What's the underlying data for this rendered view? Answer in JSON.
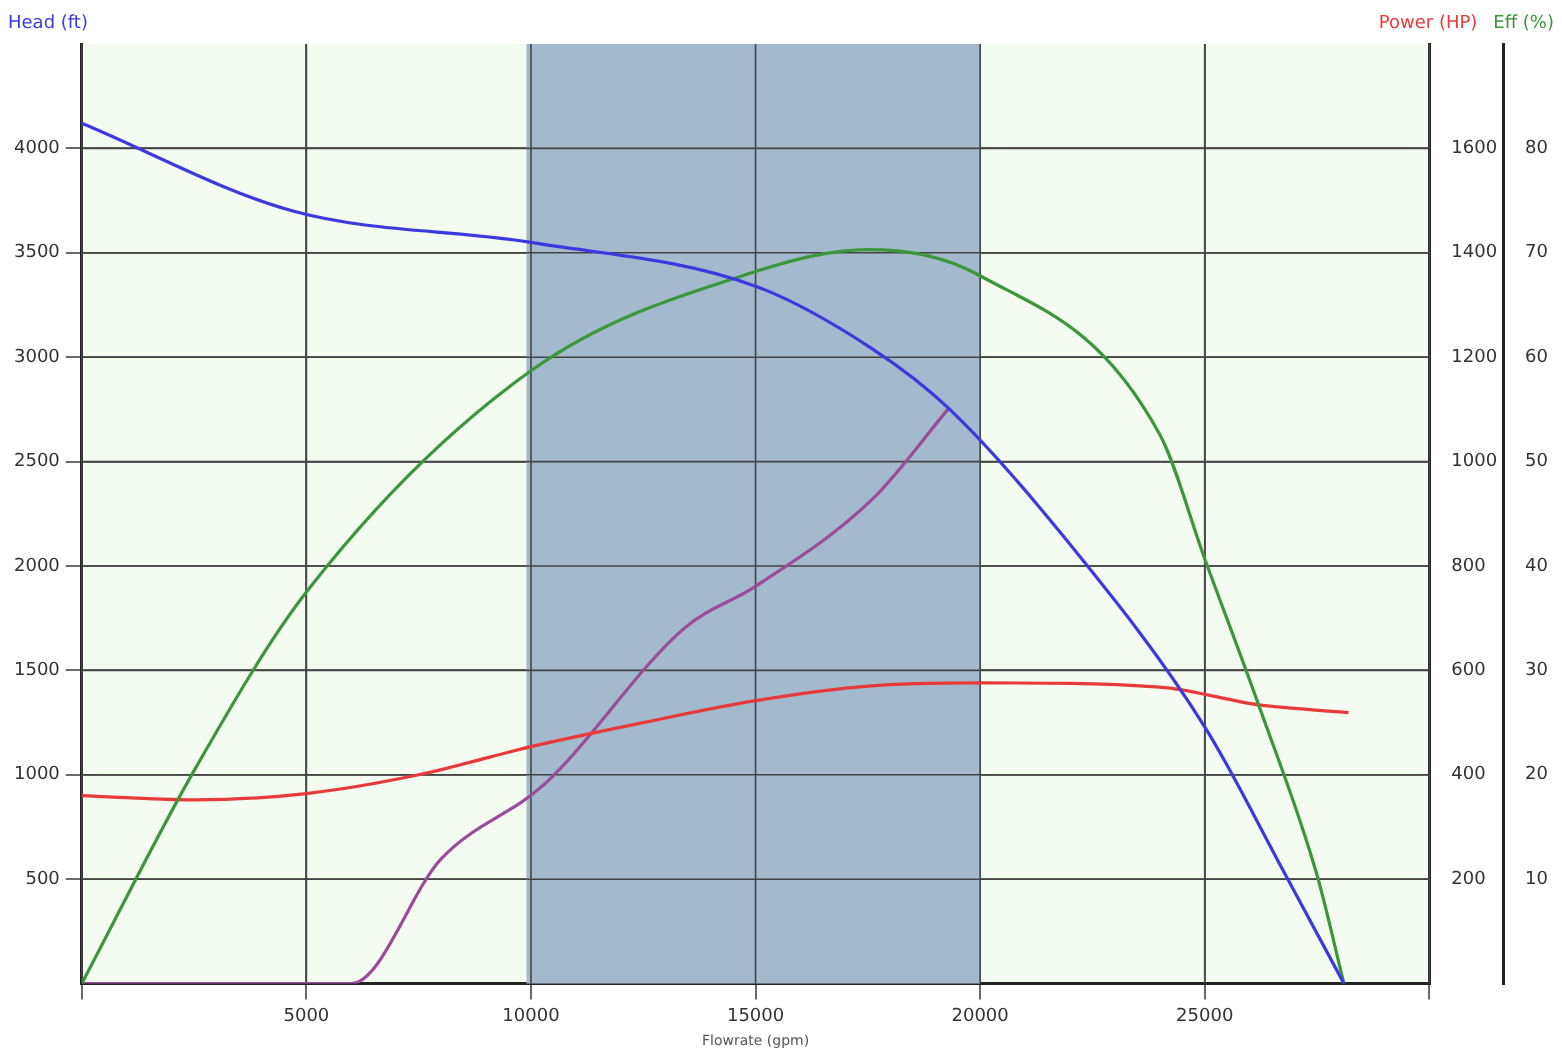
{
  "chart_data": {
    "type": "line",
    "xlabel": "Flowrate (gpm)",
    "ylabel": "Head (ft)",
    "y2label": "Power (HP)",
    "y3label": "Eff (%)",
    "xlim": [
      0,
      30000
    ],
    "xticks": [
      {
        "value": 0,
        "label": null
      },
      5000,
      10000,
      15000,
      20000,
      25000,
      {
        "value": 30000,
        "label": null
      }
    ],
    "ylim": [
      0,
      4500
    ],
    "yticks": [
      500,
      1000,
      1500,
      2000,
      2500,
      3000,
      3500,
      4000
    ],
    "y2lim": [
      0,
      1800
    ],
    "y2ticks": [
      200,
      400,
      600,
      800,
      1000,
      1200,
      1400,
      1600
    ],
    "y3lim": [
      0,
      90
    ],
    "y3ticks": [
      10,
      20,
      30,
      40,
      50,
      60,
      70,
      80
    ],
    "grid": true,
    "marker": "none",
    "line_style": "solid",
    "bands": [
      {
        "axis": "x",
        "from": 9900,
        "to": 20000,
        "color": "#a3b9cd"
      }
    ],
    "series": [
      {
        "color": "#3a3adf",
        "x": [
          0,
          4700,
          10000,
          15000,
          17600,
          19300,
          21900,
          25000,
          26800,
          28100
        ],
        "values": [
          4120,
          3700,
          3550,
          3340,
          3040,
          2755,
          2130,
          1230,
          520,
          0
        ]
      },
      {
        "color": "#3c963c",
        "axis": "y3",
        "x": [
          0,
          2500,
          5000,
          10000,
          15000,
          17500,
          20000,
          24000,
          25000,
          26200,
          27500,
          28100
        ],
        "values": [
          0,
          20.4,
          37.5,
          58.7,
          68.2,
          70.3,
          67.8,
          52.6,
          40.7,
          26.7,
          10.4,
          0
        ]
      },
      {
        "color": "#e83a3a",
        "axis": "y2",
        "x": [
          0,
          2500,
          5000,
          7500,
          10000,
          12500,
          15000,
          17500,
          20000,
          24000,
          26200,
          28200
        ],
        "values": [
          360,
          352,
          364,
          400,
          454,
          500,
          542,
          570,
          576,
          568,
          534,
          519
        ]
      },
      {
        "color": "#9a4c9a",
        "axis": "y2",
        "x": [
          0,
          6000,
          8000,
          10300,
          13430,
          15000,
          17600,
          19300
        ],
        "values": [
          0,
          0,
          239,
          382,
          682,
          761,
          928,
          1102
        ]
      }
    ]
  }
}
